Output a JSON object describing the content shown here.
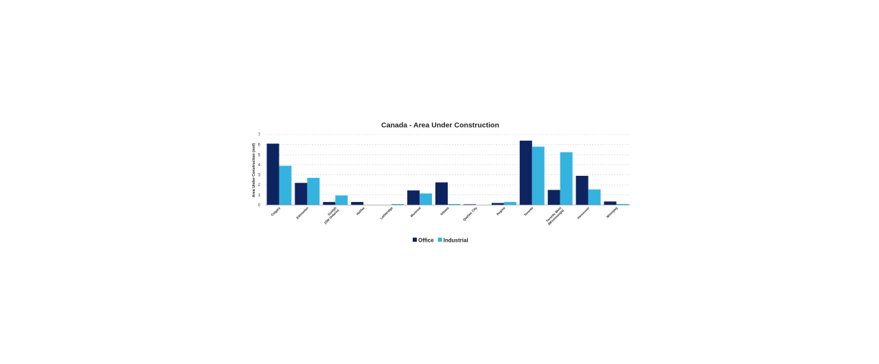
{
  "chart_data": {
    "type": "bar",
    "title": "Canada - Area Under Construction",
    "xlabel": "",
    "ylabel": "Area Under Construction (msf)",
    "ylim": [
      0,
      7
    ],
    "yticks": [
      "0",
      "1",
      "2",
      "3",
      "4",
      "5",
      "6",
      "7"
    ],
    "grid": true,
    "legend_position": "bottom",
    "categories": [
      [
        "Calgary"
      ],
      [
        "Edmonton"
      ],
      [
        "Guelph",
        "(SW Ontario)"
      ],
      [
        "Halifax"
      ],
      [
        "Lethbridge"
      ],
      [
        "Montreal"
      ],
      [
        "Ottawa"
      ],
      [
        "Quebec City"
      ],
      [
        "Regina"
      ],
      [
        "Toronto"
      ],
      [
        "Toronto West",
        "(Mississauga)"
      ],
      [
        "Vancouver"
      ],
      [
        "Winnipeg"
      ]
    ],
    "series": [
      {
        "name": "Office",
        "color": "#0d2460",
        "values": [
          6.1,
          2.2,
          0.3,
          0.3,
          0.0,
          1.45,
          2.25,
          0.07,
          0.2,
          6.4,
          1.5,
          2.9,
          0.35
        ]
      },
      {
        "name": "Industrial",
        "color": "#35b3df",
        "values": [
          3.9,
          2.7,
          0.95,
          0.0,
          0.1,
          1.15,
          0.1,
          0.0,
          0.3,
          5.8,
          5.25,
          1.55,
          0.1
        ]
      }
    ]
  }
}
